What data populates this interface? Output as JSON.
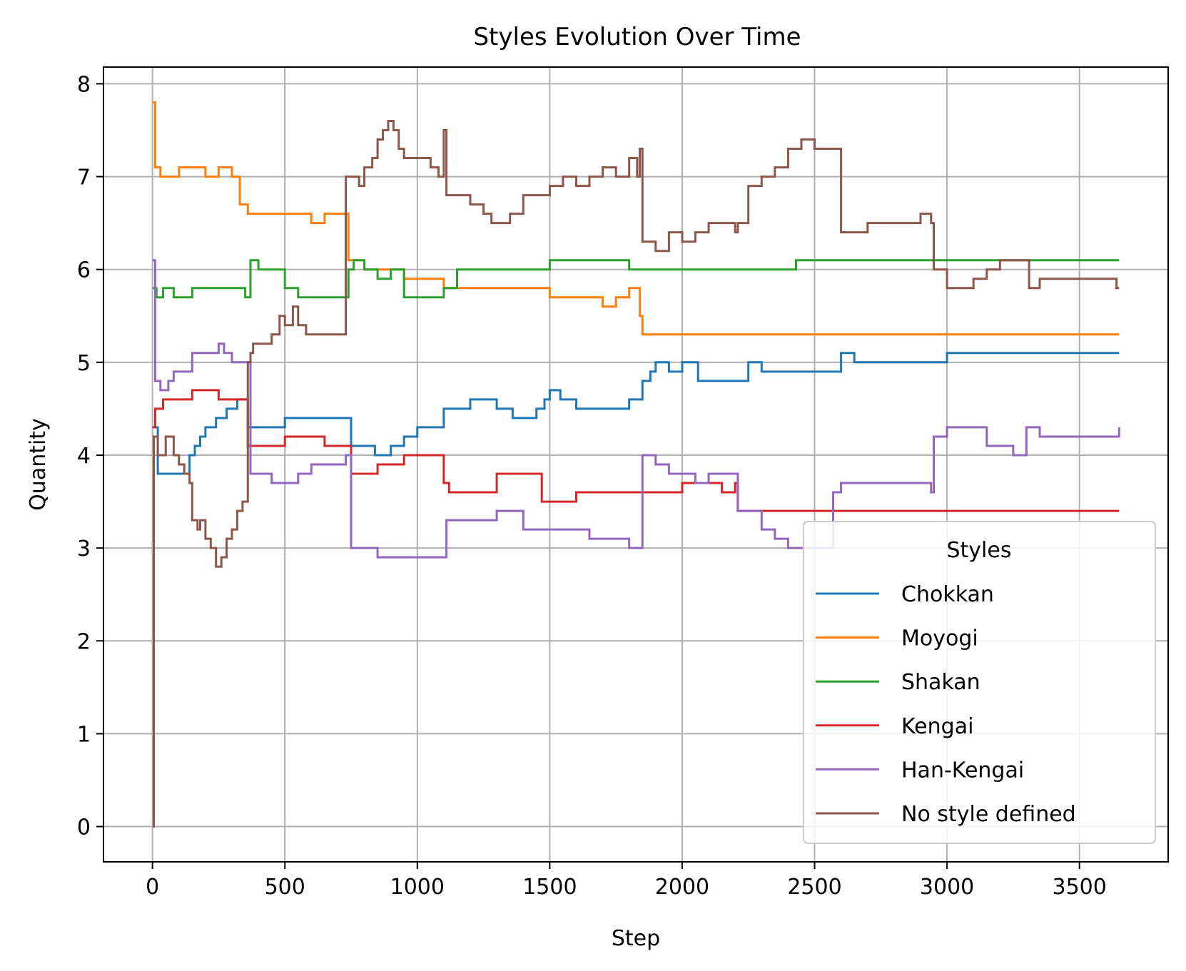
{
  "chart_data": {
    "type": "line",
    "title": "Styles Evolution Over Time",
    "xlabel": "Step",
    "ylabel": "Quantity",
    "xlim": [
      -185,
      3835
    ],
    "ylim": [
      -0.38,
      8.18
    ],
    "xticks": [
      0,
      500,
      1000,
      1500,
      2000,
      2500,
      3000,
      3500
    ],
    "yticks": [
      0,
      1,
      2,
      3,
      4,
      5,
      6,
      7,
      8
    ],
    "grid": true,
    "legend": {
      "title": "Styles",
      "position": "lower-right"
    },
    "step_interpolation": "post",
    "series": [
      {
        "name": "Chokkan",
        "color": "#1f77b4",
        "x": [
          0,
          20,
          140,
          160,
          180,
          200,
          240,
          280,
          320,
          360,
          500,
          600,
          730,
          750,
          840,
          900,
          950,
          1000,
          1100,
          1200,
          1300,
          1360,
          1400,
          1450,
          1480,
          1500,
          1540,
          1600,
          1800,
          1850,
          1880,
          1900,
          1950,
          2000,
          2060,
          2100,
          2200,
          2250,
          2300,
          2400,
          2550,
          2600,
          2650,
          2700,
          2950,
          3000,
          3650
        ],
        "y": [
          4.3,
          3.8,
          4.0,
          4.1,
          4.2,
          4.3,
          4.4,
          4.5,
          4.6,
          4.3,
          4.4,
          4.4,
          4.4,
          4.1,
          4.0,
          4.1,
          4.2,
          4.3,
          4.5,
          4.6,
          4.5,
          4.4,
          4.4,
          4.5,
          4.6,
          4.7,
          4.6,
          4.5,
          4.6,
          4.8,
          4.9,
          5.0,
          4.9,
          5.0,
          4.8,
          4.8,
          4.8,
          5.0,
          4.9,
          4.9,
          4.9,
          5.1,
          5.0,
          5.0,
          5.0,
          5.1,
          5.1
        ]
      },
      {
        "name": "Moyogi",
        "color": "#ff7f0e",
        "x": [
          0,
          10,
          30,
          100,
          150,
          200,
          250,
          300,
          330,
          360,
          500,
          600,
          650,
          700,
          740,
          760,
          800,
          850,
          950,
          1050,
          1100,
          1200,
          1300,
          1400,
          1450,
          1500,
          1550,
          1600,
          1700,
          1750,
          1800,
          1840,
          1850,
          1900,
          2000,
          2500,
          3000,
          3650
        ],
        "y": [
          7.8,
          7.1,
          7.0,
          7.1,
          7.1,
          7.0,
          7.1,
          7.0,
          6.7,
          6.6,
          6.6,
          6.5,
          6.6,
          6.6,
          6.1,
          6.1,
          6.0,
          6.0,
          5.9,
          5.9,
          5.8,
          5.8,
          5.8,
          5.8,
          5.8,
          5.7,
          5.7,
          5.7,
          5.6,
          5.7,
          5.8,
          5.5,
          5.3,
          5.3,
          5.3,
          5.3,
          5.3,
          5.3
        ]
      },
      {
        "name": "Shakan",
        "color": "#2ca02c",
        "x": [
          0,
          15,
          40,
          80,
          150,
          200,
          250,
          300,
          350,
          370,
          400,
          500,
          550,
          600,
          700,
          740,
          760,
          800,
          850,
          900,
          950,
          1000,
          1050,
          1100,
          1150,
          1200,
          1300,
          1400,
          1500,
          1600,
          1700,
          1800,
          1860,
          1900,
          2000,
          2100,
          2300,
          2400,
          2430,
          2500,
          3000,
          3650
        ],
        "y": [
          5.8,
          5.7,
          5.8,
          5.7,
          5.8,
          5.8,
          5.8,
          5.8,
          5.7,
          6.1,
          6.0,
          5.8,
          5.7,
          5.7,
          5.7,
          6.0,
          6.1,
          6.0,
          5.9,
          6.0,
          5.7,
          5.7,
          5.7,
          5.8,
          6.0,
          6.0,
          6.0,
          6.0,
          6.1,
          6.1,
          6.1,
          6.0,
          6.0,
          6.0,
          6.0,
          6.0,
          6.0,
          6.0,
          6.1,
          6.1,
          6.1,
          6.1
        ]
      },
      {
        "name": "Kengai",
        "color": "#d62728",
        "x": [
          0,
          10,
          40,
          80,
          150,
          200,
          250,
          300,
          360,
          400,
          500,
          550,
          650,
          700,
          730,
          750,
          850,
          950,
          1050,
          1100,
          1120,
          1200,
          1300,
          1400,
          1470,
          1500,
          1600,
          1700,
          1800,
          1900,
          2000,
          2100,
          2150,
          2200,
          2210,
          2300,
          2400,
          2500,
          3000,
          3650
        ],
        "y": [
          4.3,
          4.5,
          4.6,
          4.6,
          4.7,
          4.7,
          4.6,
          4.6,
          4.1,
          4.1,
          4.2,
          4.2,
          4.1,
          4.1,
          4.1,
          3.8,
          3.9,
          4.0,
          4.0,
          3.7,
          3.6,
          3.6,
          3.8,
          3.8,
          3.5,
          3.5,
          3.6,
          3.6,
          3.6,
          3.6,
          3.7,
          3.7,
          3.6,
          3.7,
          3.4,
          3.4,
          3.4,
          3.4,
          3.4,
          3.4
        ]
      },
      {
        "name": "Han-Kengai",
        "color": "#9467bd",
        "x": [
          0,
          10,
          30,
          60,
          80,
          150,
          200,
          250,
          270,
          300,
          350,
          370,
          400,
          450,
          550,
          600,
          700,
          730,
          750,
          800,
          850,
          950,
          1050,
          1100,
          1110,
          1200,
          1300,
          1350,
          1400,
          1500,
          1600,
          1650,
          1700,
          1750,
          1800,
          1840,
          1850,
          1900,
          1950,
          2000,
          2050,
          2100,
          2200,
          2210,
          2300,
          2350,
          2400,
          2500,
          2570,
          2600,
          2700,
          2800,
          2900,
          2940,
          2950,
          3000,
          3100,
          3150,
          3250,
          3300,
          3350,
          3400,
          3600,
          3650
        ],
        "y": [
          6.1,
          4.8,
          4.7,
          4.8,
          4.9,
          5.1,
          5.1,
          5.2,
          5.1,
          5.0,
          5.0,
          3.8,
          3.8,
          3.7,
          3.8,
          3.9,
          3.9,
          4.0,
          3.0,
          3.0,
          2.9,
          2.9,
          2.9,
          2.9,
          3.3,
          3.3,
          3.4,
          3.4,
          3.2,
          3.2,
          3.2,
          3.1,
          3.1,
          3.1,
          3.0,
          3.0,
          4.0,
          3.9,
          3.8,
          3.8,
          3.7,
          3.8,
          3.8,
          3.4,
          3.2,
          3.1,
          3.0,
          3.0,
          3.6,
          3.7,
          3.7,
          3.7,
          3.7,
          3.6,
          4.2,
          4.3,
          4.3,
          4.1,
          4.0,
          4.3,
          4.2,
          4.2,
          4.2,
          4.3
        ]
      },
      {
        "name": "No style defined",
        "color": "#8c564b",
        "x": [
          0,
          5,
          20,
          50,
          80,
          100,
          120,
          140,
          150,
          170,
          180,
          200,
          220,
          240,
          260,
          280,
          300,
          320,
          340,
          360,
          370,
          380,
          400,
          450,
          480,
          500,
          530,
          550,
          580,
          620,
          650,
          700,
          730,
          750,
          780,
          800,
          830,
          850,
          870,
          890,
          910,
          930,
          950,
          1000,
          1050,
          1080,
          1100,
          1110,
          1200,
          1250,
          1280,
          1300,
          1350,
          1400,
          1450,
          1500,
          1550,
          1600,
          1650,
          1700,
          1750,
          1800,
          1830,
          1840,
          1850,
          1880,
          1900,
          1950,
          2000,
          2050,
          2100,
          2150,
          2200,
          2210,
          2250,
          2300,
          2350,
          2400,
          2450,
          2500,
          2550,
          2570,
          2600,
          2700,
          2800,
          2900,
          2940,
          2950,
          3000,
          3100,
          3150,
          3200,
          3300,
          3310,
          3350,
          3400,
          3500,
          3600,
          3640,
          3650
        ],
        "y": [
          0,
          4.2,
          4.0,
          4.2,
          4.0,
          3.9,
          3.8,
          3.7,
          3.3,
          3.2,
          3.3,
          3.1,
          3.0,
          2.8,
          2.9,
          3.1,
          3.2,
          3.4,
          3.5,
          5.0,
          5.1,
          5.2,
          5.2,
          5.3,
          5.5,
          5.4,
          5.6,
          5.4,
          5.3,
          5.3,
          5.3,
          5.3,
          7.0,
          7.0,
          6.9,
          7.1,
          7.2,
          7.4,
          7.5,
          7.6,
          7.5,
          7.3,
          7.2,
          7.2,
          7.1,
          7.0,
          7.5,
          6.8,
          6.7,
          6.6,
          6.5,
          6.5,
          6.6,
          6.8,
          6.8,
          6.9,
          7.0,
          6.9,
          7.0,
          7.1,
          7.0,
          7.2,
          7.0,
          7.3,
          6.3,
          6.3,
          6.2,
          6.4,
          6.3,
          6.4,
          6.5,
          6.5,
          6.4,
          6.5,
          6.9,
          7.0,
          7.1,
          7.3,
          7.4,
          7.3,
          7.3,
          7.3,
          6.4,
          6.5,
          6.5,
          6.6,
          6.5,
          6.0,
          5.8,
          5.9,
          6.0,
          6.1,
          6.1,
          5.8,
          5.9,
          5.9,
          5.9,
          5.9,
          5.8,
          5.8
        ]
      }
    ]
  }
}
